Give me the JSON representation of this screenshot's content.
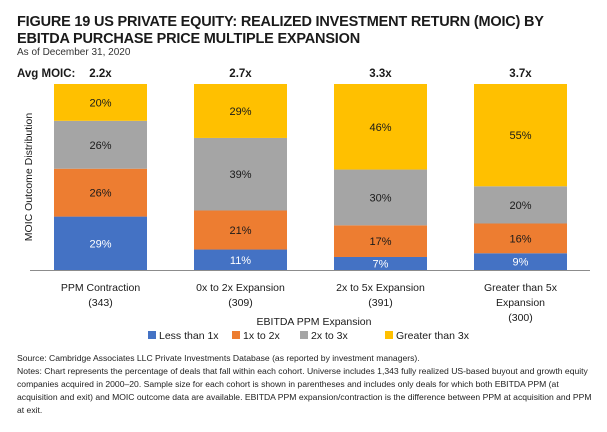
{
  "header": {
    "title": "FIGURE 19 US PRIVATE EQUITY: REALIZED INVESTMENT RETURN (MOIC) BY EBITDA PURCHASE PRICE MULTIPLE EXPANSION",
    "subtitle": "As of December 31, 2020"
  },
  "chart_data": {
    "type": "bar",
    "stacked": true,
    "title": "US Private Equity: Realized Investment Return (MOIC) by EBITDA Purchase Price Multiple Expansion",
    "xlabel": "EBITDA PPM Expansion",
    "ylabel": "MOIC Outcome Distribution",
    "ylim": [
      0,
      100
    ],
    "grid": false,
    "legend_position": "bottom",
    "avg_label": "Avg MOIC:",
    "categories": [
      {
        "label": [
          "PPM Contraction",
          "(343)"
        ],
        "avg_moic": "2.2x"
      },
      {
        "label": [
          "0x to 2x Expansion",
          "(309)"
        ],
        "avg_moic": "2.7x"
      },
      {
        "label": [
          "2x to 5x Expansion",
          "(391)"
        ],
        "avg_moic": "3.3x"
      },
      {
        "label": [
          "Greater than 5x",
          "Expansion",
          "(300)"
        ],
        "avg_moic": "3.7x"
      }
    ],
    "series": [
      {
        "name": "Less than 1x",
        "color": "#4472C4",
        "label_color": "#ffffff",
        "values": [
          29,
          11,
          7,
          9
        ]
      },
      {
        "name": "1x to 2x",
        "color": "#ED7D31",
        "label_color": "#1a1a1a",
        "values": [
          26,
          21,
          17,
          16
        ]
      },
      {
        "name": "2x to 3x",
        "color": "#A5A5A5",
        "label_color": "#1a1a1a",
        "values": [
          26,
          39,
          30,
          20
        ]
      },
      {
        "name": "Greater than 3x",
        "color": "#FFC000",
        "label_color": "#1a1a1a",
        "values": [
          20,
          29,
          46,
          55
        ]
      }
    ],
    "value_suffix": "%"
  },
  "footer": {
    "source": "Source: Cambridge Associates LLC Private Investments Database (as reported by investment managers).",
    "notes": "Notes: Chart represents the percentage of deals that fall within each cohort. Universe includes 1,343 fully realized US-based buyout and growth equity companies acquired in 2000–20. Sample size for each cohort is shown in parentheses and includes only deals for which both EBITDA PPM (at acquisition and exit) and MOIC outcome data are available. EBITDA PPM expansion/contraction is the difference between PPM at acquisition and PPM at exit."
  }
}
